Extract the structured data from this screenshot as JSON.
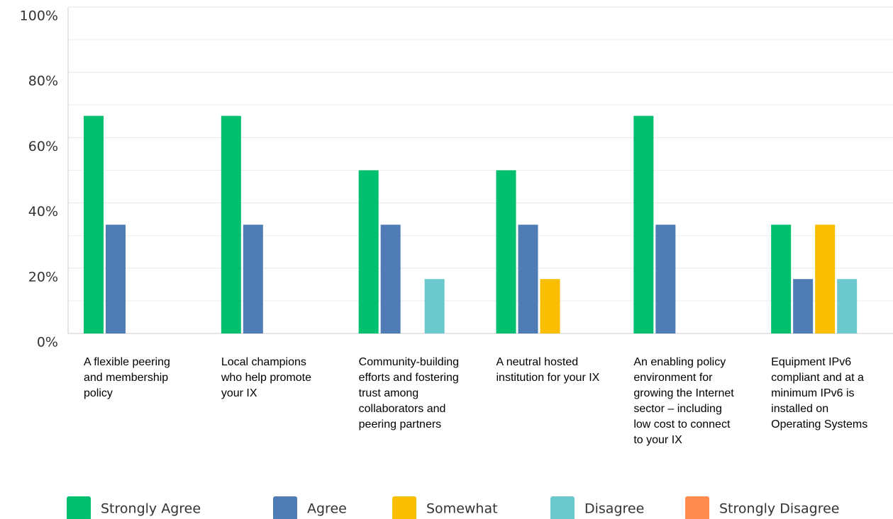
{
  "chart_data": {
    "type": "bar",
    "categories": [
      "A flexible peering and membership policy",
      "Local champions who help promote your IX",
      "Community-building efforts and fostering trust among collaborators and peering partners",
      "A neutral hosted institution for your IX",
      "An enabling policy environment for growing the Internet sector – including low cost to connect to your IX",
      "Equipment IPv6 compliant and at a minimum IPv6 is installed on Operating Systems"
    ],
    "series": [
      {
        "name": "Strongly Agree",
        "color": "#00bf6f",
        "values": [
          66.67,
          66.67,
          50,
          50,
          66.67,
          33.33
        ]
      },
      {
        "name": "Agree",
        "color": "#507cb6",
        "values": [
          33.33,
          33.33,
          33.33,
          33.33,
          33.33,
          16.67
        ]
      },
      {
        "name": "Somewhat",
        "color": "#f9be00",
        "values": [
          0,
          0,
          0,
          16.67,
          0,
          33.33
        ]
      },
      {
        "name": "Disagree",
        "color": "#6bc8cd",
        "values": [
          0,
          0,
          16.67,
          0,
          0,
          16.67
        ]
      },
      {
        "name": "Strongly Disagree",
        "color": "#ff8b4f",
        "values": [
          0,
          0,
          0,
          0,
          0,
          0
        ]
      }
    ],
    "ylim": [
      0,
      100
    ],
    "yticks": [
      {
        "value": 0,
        "label": "0%"
      },
      {
        "value": 20,
        "label": "20%"
      },
      {
        "value": 40,
        "label": "40%"
      },
      {
        "value": 60,
        "label": "60%"
      },
      {
        "value": 80,
        "label": "80%"
      },
      {
        "value": 100,
        "label": "100%"
      }
    ],
    "grid": true,
    "legend": "bottom"
  }
}
